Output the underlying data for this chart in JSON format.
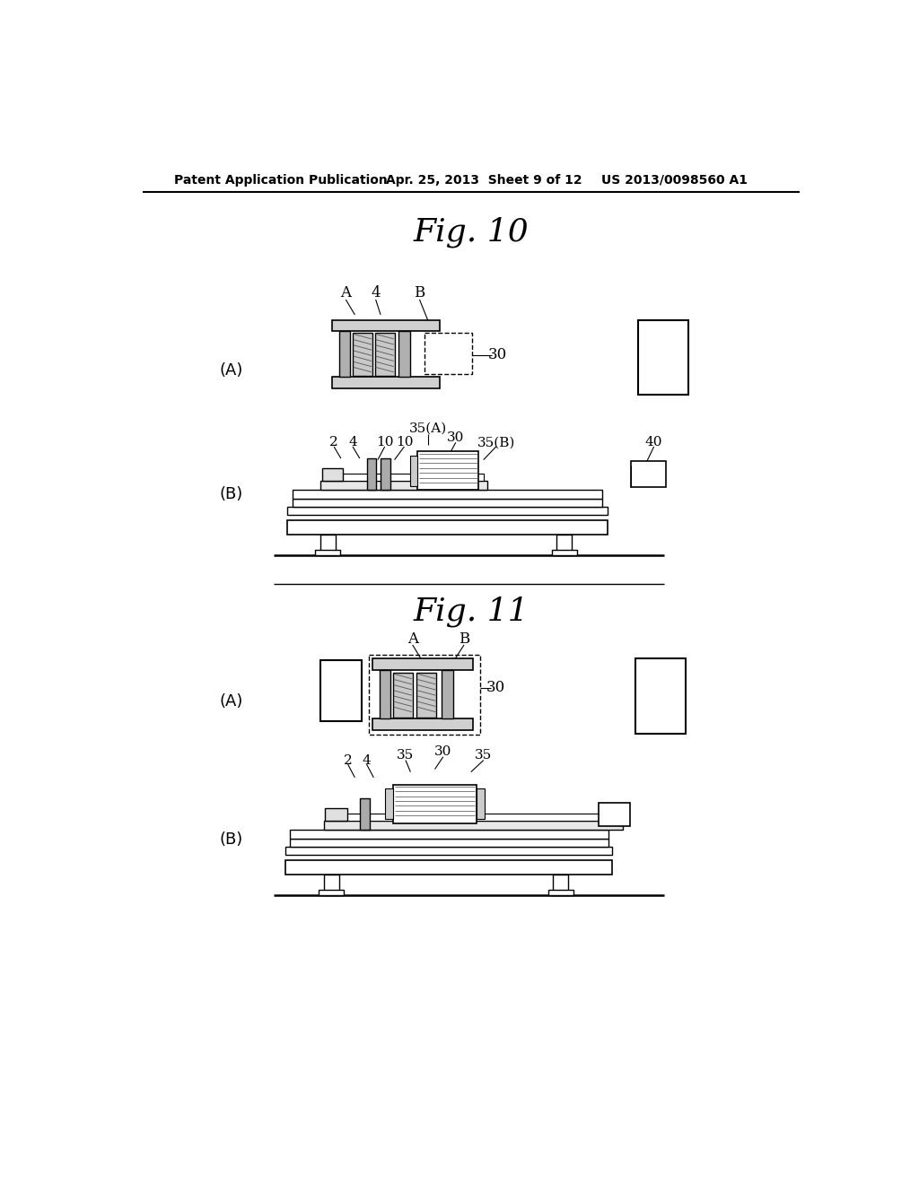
{
  "bg_color": "#ffffff",
  "header_text": "Patent Application Publication",
  "header_date": "Apr. 25, 2013  Sheet 9 of 12",
  "header_patent": "US 2013/0098560 A1",
  "fig10_title": "Fig. 10",
  "fig11_title": "Fig. 11",
  "header_fontsize": 11,
  "fig_title_fontsize": 26,
  "label_fontsize": 12,
  "small_label_fontsize": 11
}
